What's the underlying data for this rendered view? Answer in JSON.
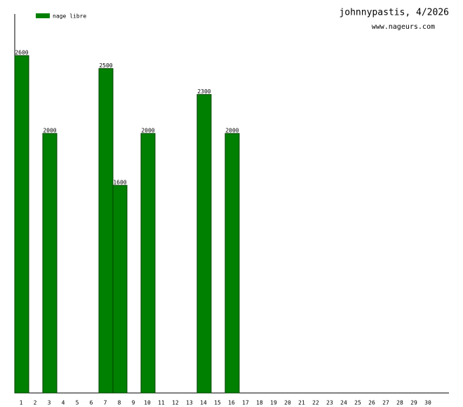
{
  "chart_data": {
    "type": "bar",
    "title": "johnnypastis, 4/2026",
    "subtitle": "www.nageurs.com",
    "categories": [
      1,
      2,
      3,
      4,
      5,
      6,
      7,
      8,
      9,
      10,
      11,
      12,
      13,
      14,
      15,
      16,
      17,
      18,
      19,
      20,
      21,
      22,
      23,
      24,
      25,
      26,
      27,
      28,
      29,
      30
    ],
    "series": [
      {
        "name": "nage libre",
        "color": "#008000",
        "values": [
          2600,
          null,
          2000,
          null,
          null,
          null,
          2500,
          1600,
          null,
          2000,
          null,
          null,
          null,
          2300,
          null,
          2000,
          null,
          null,
          null,
          null,
          null,
          null,
          null,
          null,
          null,
          null,
          null,
          null,
          null,
          null
        ]
      }
    ],
    "ylim": [
      0,
      2920
    ]
  }
}
